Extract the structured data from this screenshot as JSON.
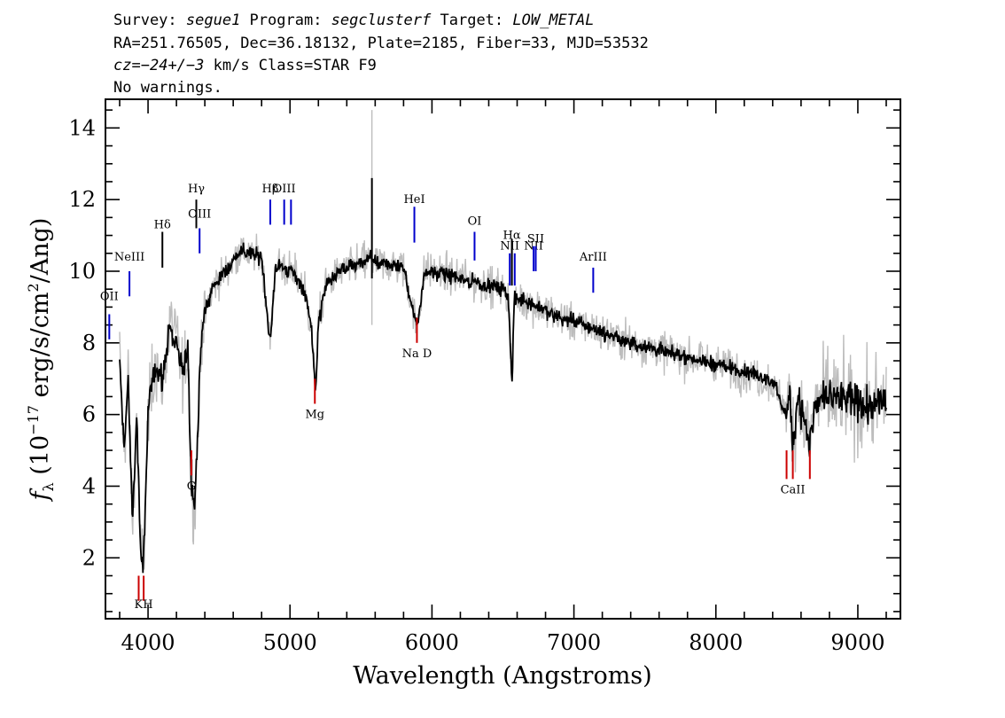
{
  "header": {
    "line1": {
      "survey_label": "Survey: ",
      "survey_value": "segue1",
      "program_label": " Program: ",
      "program_value": "segclusterf",
      "target_label": " Target: ",
      "target_value": "LOW_METAL"
    },
    "line2": "RA=251.76505, Dec=36.18132, Plate=2185, Fiber=33, MJD=53532",
    "line3": {
      "cz_label": "cz",
      "cz_eq": "=",
      "cz_value": "−24+/−3",
      "cz_rest": " km/s Class=STAR F9"
    },
    "line4": "No warnings."
  },
  "chart_data": {
    "type": "line",
    "title": "",
    "xlabel": "Wavelength (Angstroms)",
    "ylabel": "f_λ (10^-17 erg/s/cm^2/Ang)",
    "xlim": [
      3700,
      9300
    ],
    "ylim": [
      0.3,
      14.8
    ],
    "xticks": [
      4000,
      5000,
      6000,
      7000,
      8000,
      9000
    ],
    "yticks": [
      2,
      4,
      6,
      8,
      10,
      12,
      14
    ],
    "grid": false,
    "legend": "none",
    "series": [
      {
        "name": "flux",
        "color": "#000000",
        "x": [
          3800,
          3830,
          3860,
          3890,
          3920,
          3950,
          3970,
          4000,
          4050,
          4101,
          4150,
          4200,
          4250,
          4280,
          4305,
          4330,
          4340,
          4380,
          4450,
          4500,
          4550,
          4600,
          4650,
          4700,
          4800,
          4861,
          4900,
          4950,
          5000,
          5050,
          5100,
          5150,
          5172,
          5183,
          5200,
          5250,
          5300,
          5350,
          5400,
          5500,
          5577,
          5600,
          5700,
          5800,
          5889,
          5895,
          5950,
          6000,
          6100,
          6200,
          6300,
          6400,
          6500,
          6540,
          6563,
          6580,
          6650,
          6700,
          6800,
          6900,
          7000,
          7200,
          7400,
          7600,
          7800,
          8000,
          8200,
          8400,
          8498,
          8520,
          8542,
          8580,
          8662,
          8700,
          8800,
          8900,
          9000,
          9100,
          9200
        ],
        "y": [
          7.5,
          5.0,
          7.0,
          3.0,
          6.0,
          1.8,
          2.0,
          6.0,
          7.5,
          6.8,
          8.5,
          8.0,
          7.0,
          8.0,
          4.0,
          3.5,
          4.5,
          8.5,
          9.5,
          9.8,
          10.0,
          10.3,
          10.6,
          10.5,
          10.4,
          8.0,
          10.2,
          10.1,
          10.0,
          9.8,
          9.5,
          8.5,
          7.0,
          6.9,
          8.5,
          9.6,
          9.8,
          10.0,
          10.1,
          10.2,
          10.4,
          10.2,
          10.2,
          10.1,
          8.5,
          8.5,
          10.0,
          10.0,
          9.9,
          9.8,
          9.7,
          9.6,
          9.5,
          9.2,
          6.8,
          9.2,
          9.2,
          9.1,
          8.9,
          8.7,
          8.6,
          8.3,
          8.0,
          7.8,
          7.6,
          7.4,
          7.2,
          6.9,
          6.0,
          6.6,
          5.3,
          6.5,
          5.2,
          6.3,
          6.5,
          6.4,
          6.3,
          6.2,
          6.4
        ]
      }
    ],
    "line_markers": [
      {
        "label": "OII",
        "wave": 3727,
        "y0": 8.1,
        "y1": 8.8,
        "label_y": 9.2,
        "color": "#0000cc"
      },
      {
        "label": "NeIII",
        "wave": 3869,
        "y0": 9.3,
        "y1": 10.0,
        "label_y": 10.3,
        "color": "#0000cc"
      },
      {
        "label": "Hδ",
        "wave": 4101,
        "y0": 10.1,
        "y1": 11.1,
        "label_y": 11.2,
        "color": "#000000"
      },
      {
        "label": "Hγ",
        "wave": 4340,
        "y0": 11.2,
        "y1": 12.0,
        "label_y": 12.2,
        "color": "#000000"
      },
      {
        "label": "OIII",
        "wave": 4363,
        "y0": 10.5,
        "y1": 11.2,
        "label_y": 11.5,
        "color": "#0000cc"
      },
      {
        "label": "Hβ",
        "wave": 4861,
        "y0": 11.3,
        "y1": 12.0,
        "label_y": 12.2,
        "color": "#0000cc"
      },
      {
        "label": "OIII",
        "wave": 4959,
        "y0": 11.3,
        "y1": 12.0,
        "label_y": 12.2,
        "color": "#0000cc"
      },
      {
        "label": "",
        "wave": 5007,
        "y0": 11.3,
        "y1": 12.0,
        "label_y": 12.2,
        "color": "#0000cc"
      },
      {
        "label": "HeI",
        "wave": 5876,
        "y0": 10.8,
        "y1": 11.8,
        "label_y": 11.9,
        "color": "#0000cc"
      },
      {
        "label": "OI",
        "wave": 6300,
        "y0": 10.3,
        "y1": 11.1,
        "label_y": 11.3,
        "color": "#0000cc"
      },
      {
        "label": "NII",
        "wave": 6548,
        "y0": 9.6,
        "y1": 10.5,
        "label_y": 10.6,
        "color": "#0000cc"
      },
      {
        "label": "Hα",
        "wave": 6563,
        "y0": 9.6,
        "y1": 10.9,
        "label_y": 10.9,
        "color": "#000000"
      },
      {
        "label": "",
        "wave": 6583,
        "y0": 9.6,
        "y1": 10.5,
        "label_y": 10.6,
        "color": "#0000cc"
      },
      {
        "label": "NII",
        "wave": 6716,
        "y0": 10.0,
        "y1": 10.7,
        "label_y": 10.6,
        "color": "#0000cc"
      },
      {
        "label": "SII",
        "wave": 6731,
        "y0": 10.0,
        "y1": 10.7,
        "label_y": 10.8,
        "color": "#0000cc"
      },
      {
        "label": "ArIII",
        "wave": 7136,
        "y0": 9.4,
        "y1": 10.1,
        "label_y": 10.3,
        "color": "#0000cc"
      },
      {
        "label": "",
        "wave": 3934,
        "y0": 0.8,
        "y1": 1.5,
        "label_y": 0.6,
        "color": "#cc0000"
      },
      {
        "label": "KH",
        "wave": 3969,
        "y0": 0.8,
        "y1": 1.5,
        "label_y": 0.6,
        "color": "#cc0000"
      },
      {
        "label": "G",
        "wave": 4305,
        "y0": 4.3,
        "y1": 5.0,
        "label_y": 3.9,
        "color": "#cc0000"
      },
      {
        "label": "Mg",
        "wave": 5175,
        "y0": 6.3,
        "y1": 7.0,
        "label_y": 5.9,
        "color": "#cc0000"
      },
      {
        "label": "Na D",
        "wave": 5894,
        "y0": 8.0,
        "y1": 8.7,
        "label_y": 7.6,
        "color": "#cc0000"
      },
      {
        "label": "",
        "wave": 8498,
        "y0": 4.2,
        "y1": 5.0,
        "label_y": 3.8,
        "color": "#cc0000"
      },
      {
        "label": "CaII",
        "wave": 8542,
        "y0": 4.2,
        "y1": 5.0,
        "label_y": 3.8,
        "color": "#cc0000"
      },
      {
        "label": "",
        "wave": 8662,
        "y0": 4.2,
        "y1": 5.0,
        "label_y": 3.8,
        "color": "#cc0000"
      }
    ]
  }
}
